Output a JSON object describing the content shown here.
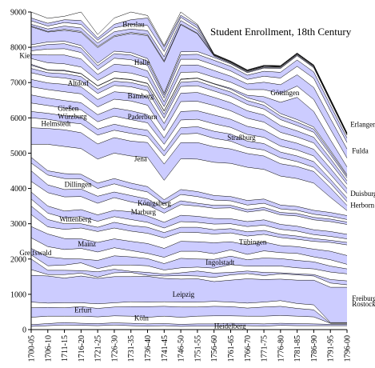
{
  "chart_data": {
    "type": "area",
    "title": "Student Enrollment, 18th Century",
    "xlabel": "",
    "ylabel": "",
    "ylim": [
      0,
      9000
    ],
    "yticks": [
      0,
      1000,
      2000,
      3000,
      4000,
      5000,
      6000,
      7000,
      8000,
      9000
    ],
    "grid": false,
    "legend": "inline labels",
    "fill_colors": [
      "#ffffff",
      "#ccccff"
    ],
    "line_color": "#000000",
    "x": [
      "1700-05",
      "1706-10",
      "1711-15",
      "1716-20",
      "1721-25",
      "1726-30",
      "1731-35",
      "1736-40",
      "1741-45",
      "1746-50",
      "1751-55",
      "1756-60",
      "1761-65",
      "1766-70",
      "1771-75",
      "1776-80",
      "1781-85",
      "1786-90",
      "1791-95",
      "1796-00"
    ],
    "boundaries": [
      [
        0,
        0,
        0,
        0,
        0,
        0,
        0,
        0,
        0,
        0,
        0,
        0,
        0,
        0,
        0,
        0,
        0,
        0,
        0,
        0
      ],
      [
        90,
        110,
        130,
        120,
        110,
        130,
        110,
        100,
        110,
        90,
        100,
        100,
        120,
        110,
        100,
        120,
        110,
        110,
        110,
        110
      ],
      [
        140,
        170,
        200,
        180,
        170,
        190,
        180,
        160,
        170,
        150,
        160,
        160,
        180,
        170,
        160,
        180,
        170,
        160,
        150,
        150
      ],
      [
        350,
        380,
        380,
        380,
        360,
        390,
        380,
        350,
        380,
        350,
        380,
        390,
        390,
        380,
        380,
        400,
        380,
        360,
        180,
        180
      ],
      [
        620,
        630,
        620,
        650,
        600,
        640,
        650,
        650,
        660,
        640,
        640,
        660,
        650,
        610,
        640,
        660,
        600,
        560,
        180,
        180
      ],
      [
        780,
        750,
        760,
        760,
        730,
        760,
        790,
        780,
        790,
        780,
        780,
        800,
        780,
        750,
        780,
        820,
        740,
        700,
        200,
        200
      ],
      [
        1540,
        1520,
        1460,
        1520,
        1450,
        1500,
        1500,
        1510,
        1450,
        1430,
        1440,
        1360,
        1400,
        1440,
        1420,
        1430,
        1400,
        1400,
        1200,
        1200
      ],
      [
        1700,
        1560,
        1560,
        1600,
        1490,
        1610,
        1620,
        1540,
        1520,
        1530,
        1520,
        1480,
        1550,
        1590,
        1530,
        1580,
        1550,
        1520,
        1320,
        1270
      ],
      [
        2000,
        1680,
        1680,
        1670,
        1640,
        1710,
        1650,
        1620,
        1570,
        1610,
        1660,
        1600,
        1620,
        1660,
        1620,
        1610,
        1580,
        1560,
        1420,
        1380
      ],
      [
        2120,
        1810,
        1830,
        1890,
        1730,
        1830,
        1830,
        1810,
        1690,
        1750,
        1770,
        1740,
        1840,
        1800,
        1800,
        1800,
        1750,
        1720,
        1630,
        1580
      ],
      [
        2300,
        2060,
        2010,
        2000,
        1960,
        2090,
        2060,
        2010,
        1870,
        2020,
        2000,
        1990,
        2080,
        1980,
        2030,
        2010,
        1960,
        1920,
        1800,
        1720
      ],
      [
        2600,
        2350,
        2270,
        2300,
        2200,
        2320,
        2240,
        2160,
        2050,
        2220,
        2220,
        2150,
        2260,
        2130,
        2230,
        2180,
        2160,
        2060,
        1980,
        1850
      ],
      [
        2920,
        2710,
        2580,
        2570,
        2470,
        2570,
        2500,
        2440,
        2300,
        2500,
        2490,
        2460,
        2490,
        2400,
        2480,
        2380,
        2350,
        2280,
        2220,
        2100
      ],
      [
        3260,
        2910,
        2840,
        2880,
        2780,
        2880,
        2790,
        2730,
        2600,
        2760,
        2750,
        2710,
        2740,
        2650,
        2700,
        2610,
        2560,
        2500,
        2470,
        2400
      ],
      [
        3500,
        3120,
        3000,
        3000,
        2900,
        3040,
        2950,
        2900,
        2750,
        2900,
        2900,
        2830,
        2860,
        2770,
        2810,
        2700,
        2650,
        2580,
        2530,
        2470
      ],
      [
        3700,
        3300,
        3170,
        3200,
        3070,
        3200,
        3120,
        3040,
        2880,
        3060,
        3040,
        2990,
        3000,
        2920,
        2960,
        2840,
        2790,
        2690,
        2640,
        2570
      ],
      [
        3900,
        3500,
        3360,
        3400,
        3250,
        3380,
        3340,
        3220,
        3040,
        3240,
        3210,
        3150,
        3140,
        3060,
        3110,
        2980,
        2930,
        2830,
        2780,
        2700
      ],
      [
        4200,
        3880,
        3760,
        3770,
        3580,
        3740,
        3620,
        3530,
        3300,
        3540,
        3500,
        3440,
        3450,
        3330,
        3390,
        3250,
        3220,
        3110,
        3060,
        2980
      ],
      [
        4500,
        4100,
        3970,
        3980,
        3780,
        3900,
        3800,
        3700,
        3420,
        3650,
        3580,
        3520,
        3520,
        3400,
        3460,
        3320,
        3290,
        3180,
        3130,
        3050
      ],
      [
        4720,
        4380,
        4280,
        4270,
        4000,
        4130,
        4000,
        3900,
        3560,
        3830,
        3770,
        3670,
        3650,
        3530,
        3580,
        3420,
        3380,
        3270,
        3210,
        3120
      ],
      [
        4880,
        4500,
        4420,
        4400,
        4150,
        4280,
        4150,
        4050,
        3680,
        3970,
        3910,
        3800,
        3770,
        3660,
        3700,
        3530,
        3490,
        3380,
        3320,
        3230
      ],
      [
        5250,
        5250,
        5190,
        5130,
        4830,
        5000,
        4920,
        4880,
        4230,
        4840,
        4830,
        4740,
        4710,
        4600,
        4540,
        4350,
        4280,
        4150,
        3750,
        3370
      ],
      [
        5720,
        5700,
        5660,
        5580,
        5260,
        5440,
        5340,
        5300,
        4690,
        5300,
        5300,
        5180,
        5120,
        4990,
        4920,
        4700,
        4620,
        4480,
        4020,
        3520
      ],
      [
        6000,
        5960,
        5880,
        5830,
        5510,
        5650,
        5560,
        5480,
        4920,
        5540,
        5560,
        5420,
        5340,
        5160,
        5090,
        4870,
        4760,
        4600,
        4150,
        3620
      ],
      [
        6180,
        6130,
        6060,
        6020,
        5680,
        5820,
        5720,
        5650,
        5060,
        5720,
        5750,
        5620,
        5540,
        5340,
        5270,
        5030,
        4920,
        4760,
        4260,
        3730
      ],
      [
        6420,
        6350,
        6280,
        6230,
        5890,
        6050,
        5950,
        5860,
        5250,
        5940,
        5960,
        5830,
        5730,
        5530,
        5450,
        5200,
        5090,
        4920,
        4400,
        3860
      ],
      [
        6650,
        6560,
        6490,
        6430,
        6090,
        6280,
        6200,
        6090,
        5430,
        6180,
        6200,
        6080,
        5960,
        5760,
        5660,
        5400,
        5280,
        5110,
        4570,
        4000
      ],
      [
        6880,
        6800,
        6740,
        6680,
        6310,
        6530,
        6480,
        6360,
        5640,
        6460,
        6470,
        6350,
        6200,
        5990,
        5880,
        5590,
        5460,
        5290,
        4720,
        4120
      ],
      [
        7090,
        6990,
        6950,
        6880,
        6520,
        6740,
        6700,
        6590,
        5840,
        6700,
        6720,
        6580,
        6430,
        6200,
        6080,
        5780,
        5630,
        5450,
        4850,
        4220
      ],
      [
        7280,
        7170,
        7130,
        7050,
        6690,
        6920,
        6880,
        6770,
        5990,
        6890,
        6910,
        6760,
        6610,
        6380,
        6250,
        5950,
        5780,
        5590,
        4960,
        4300
      ],
      [
        7400,
        7280,
        7250,
        7170,
        6810,
        7040,
        7000,
        6890,
        6100,
        7010,
        7040,
        6880,
        6730,
        6490,
        6360,
        6050,
        5880,
        5680,
        5030,
        4350
      ],
      [
        7490,
        7350,
        7330,
        7250,
        6900,
        7120,
        7080,
        6970,
        6190,
        7090,
        7120,
        6960,
        6810,
        6570,
        6440,
        6120,
        5950,
        5740,
        5080,
        4390
      ],
      [
        7520,
        7360,
        7350,
        7260,
        6910,
        7130,
        7090,
        6980,
        6200,
        7100,
        7130,
        6970,
        6840,
        6640,
        6600,
        6440,
        6580,
        6180,
        5380,
        4610
      ],
      [
        7680,
        7560,
        7530,
        7440,
        7060,
        7310,
        7270,
        7140,
        6320,
        7290,
        7300,
        7150,
        7010,
        6800,
        6800,
        6690,
        6900,
        6520,
        5680,
        4860
      ],
      [
        7790,
        7780,
        7780,
        7670,
        7230,
        7520,
        7480,
        7330,
        6450,
        7490,
        7500,
        7340,
        7180,
        6960,
        7010,
        6940,
        7220,
        6860,
        5980,
        5120
      ],
      [
        7900,
        7950,
        7960,
        7850,
        7360,
        7690,
        7650,
        7490,
        6560,
        7660,
        7660,
        7500,
        7330,
        7090,
        7180,
        7130,
        7460,
        7120,
        6200,
        5300
      ],
      [
        8000,
        8080,
        8100,
        7980,
        7480,
        7820,
        7780,
        7610,
        6650,
        7790,
        7800,
        7630,
        7460,
        7210,
        7320,
        7290,
        7640,
        7300,
        6360,
        5430
      ],
      [
        8070,
        8150,
        8170,
        8050,
        7550,
        7890,
        7850,
        7680,
        6700,
        7870,
        7880,
        7710,
        7530,
        7280,
        7410,
        7400,
        7760,
        7420,
        6460,
        5510
      ],
      [
        8580,
        8430,
        8480,
        8420,
        7990,
        8300,
        8390,
        8330,
        7580,
        8640,
        8380,
        7750,
        7550,
        7300,
        7430,
        7420,
        7780,
        7440,
        6480,
        5520
      ],
      [
        8600,
        8450,
        8510,
        8450,
        8020,
        8330,
        8420,
        8360,
        7610,
        8660,
        8400,
        7770,
        7570,
        7320,
        7450,
        7440,
        7800,
        7460,
        6500,
        5540
      ],
      [
        8650,
        8520,
        8600,
        8550,
        8120,
        8440,
        8520,
        8470,
        7730,
        8760,
        8480,
        7780,
        7580,
        7330,
        7460,
        7450,
        7810,
        7470,
        6510,
        5550
      ],
      [
        8750,
        8600,
        8700,
        8650,
        8200,
        8550,
        8650,
        8620,
        7880,
        8850,
        8550,
        7790,
        7590,
        7340,
        7470,
        7460,
        7820,
        7480,
        6520,
        5560
      ],
      [
        8830,
        8680,
        8780,
        8760,
        8260,
        8650,
        8780,
        8830,
        8010,
        8910,
        8620,
        7800,
        7600,
        7350,
        7480,
        7470,
        7830,
        7490,
        6530,
        5570
      ],
      [
        9000,
        8820,
        8880,
        9000,
        8360,
        8830,
        9000,
        8900,
        8050,
        9000,
        8650,
        7810,
        7610,
        7360,
        7490,
        7480,
        7840,
        7500,
        6540,
        5580
      ]
    ],
    "labels": [
      {
        "text": "Heidelberg",
        "x": 11.0,
        "y": 100
      },
      {
        "text": "Köln",
        "x": 6.2,
        "y": 330
      },
      {
        "text": "Erfurt",
        "x": 2.6,
        "y": 560
      },
      {
        "text": "Rostock",
        "x": 19.3,
        "y": 730
      },
      {
        "text": "Freiburg",
        "x": 19.3,
        "y": 880
      },
      {
        "text": "Leipzig",
        "x": 8.5,
        "y": 1000
      },
      {
        "text": "Ingolstadt",
        "x": 10.5,
        "y": 1900
      },
      {
        "text": "Greifswald",
        "x": -0.7,
        "y": 2180
      },
      {
        "text": "Mainz",
        "x": 2.8,
        "y": 2430
      },
      {
        "text": "Tübingen",
        "x": 12.5,
        "y": 2480
      },
      {
        "text": "Wittenberg",
        "x": 1.7,
        "y": 3130
      },
      {
        "text": "Marburg",
        "x": 6.0,
        "y": 3330
      },
      {
        "text": "Königsberg",
        "x": 6.4,
        "y": 3580
      },
      {
        "text": "Herborn",
        "x": 19.2,
        "y": 3530
      },
      {
        "text": "Duisburg",
        "x": 19.2,
        "y": 3850
      },
      {
        "text": "Dillingen",
        "x": 2.0,
        "y": 4120
      },
      {
        "text": "Jena",
        "x": 6.2,
        "y": 4840
      },
      {
        "text": "Fulda",
        "x": 19.3,
        "y": 5070
      },
      {
        "text": "Straßburg",
        "x": 11.8,
        "y": 5440
      },
      {
        "text": "Helmstedt",
        "x": 0.6,
        "y": 5840
      },
      {
        "text": "Erlangen",
        "x": 19.2,
        "y": 5820
      },
      {
        "text": "Würzburg",
        "x": 1.6,
        "y": 6040
      },
      {
        "text": "Paderborn",
        "x": 5.8,
        "y": 6030
      },
      {
        "text": "Gießen",
        "x": 1.6,
        "y": 6270
      },
      {
        "text": "Bamberg",
        "x": 5.8,
        "y": 6620
      },
      {
        "text": "Göttingen",
        "x": 14.4,
        "y": 6710
      },
      {
        "text": "Altdorf",
        "x": 2.2,
        "y": 6980
      },
      {
        "text": "Halle",
        "x": 6.2,
        "y": 7570
      },
      {
        "text": "Kiel",
        "x": -0.7,
        "y": 7760
      },
      {
        "text": "Breslau",
        "x": 5.5,
        "y": 8650
      }
    ]
  }
}
